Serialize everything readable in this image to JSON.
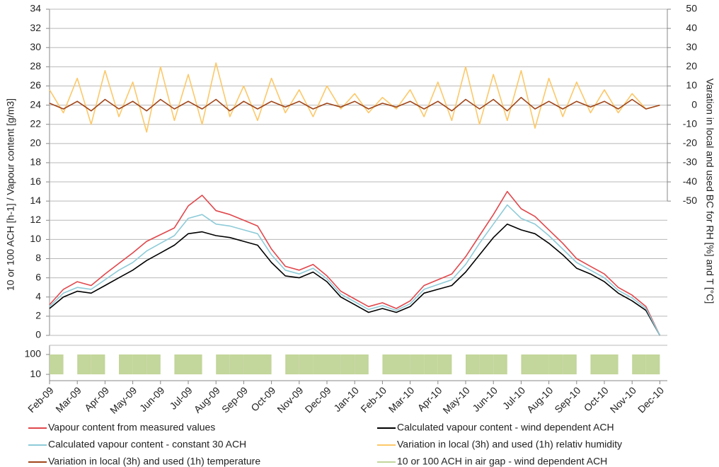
{
  "chart_data": [
    {
      "type": "line",
      "y_label": "10 or 100 ACH [h-1] / Vapour content [g/m3]",
      "y2_label": "Varation in local and used BC for RH [%] and T [°C]",
      "x": [
        0,
        0.5,
        1,
        1.5,
        2,
        2.5,
        3,
        3.5,
        4,
        4.5,
        5,
        5.5,
        6,
        6.5,
        7,
        7.5,
        8,
        8.5,
        9,
        9.5,
        10,
        10.5,
        11,
        11.5,
        12,
        12.5,
        13,
        13.5,
        14,
        14.5,
        15,
        15.5,
        16,
        16.5,
        17,
        17.5,
        18,
        18.5,
        19,
        19.5,
        20,
        20.5,
        21,
        21.5,
        22
      ],
      "xlim": [
        0,
        22.27
      ],
      "ylim": [
        0,
        34
      ],
      "yticks": [
        0,
        2,
        4,
        6,
        8,
        10,
        12,
        14,
        16,
        18,
        20,
        22,
        24,
        26,
        28,
        30,
        32,
        34
      ],
      "y2lim": [
        -120,
        50
      ],
      "y2ticks": [
        50,
        40,
        30,
        20,
        10,
        0,
        -10,
        -20,
        -30,
        -40,
        -50
      ],
      "grid": true,
      "series": [
        {
          "name": "Vapour content from measured values",
          "color": "#e0474c",
          "values": [
            3.2,
            4.8,
            5.6,
            5.2,
            6.4,
            7.5,
            8.6,
            9.8,
            10.5,
            11.2,
            13.5,
            14.6,
            13.0,
            12.6,
            12.0,
            11.4,
            9.0,
            7.2,
            6.8,
            7.4,
            6.2,
            4.6,
            3.8,
            3.0,
            3.4,
            2.8,
            3.6,
            5.2,
            5.8,
            6.4,
            8.2,
            10.4,
            12.6,
            15.0,
            13.2,
            12.4,
            11.0,
            9.6,
            8.0,
            7.2,
            6.4,
            5.0,
            4.2,
            3.0,
            0
          ]
        },
        {
          "name": "Calculated vapour content - wind dependent ACH",
          "color": "#000000",
          "values": [
            2.8,
            4.0,
            4.6,
            4.4,
            5.2,
            6.0,
            6.8,
            7.8,
            8.6,
            9.4,
            10.6,
            10.8,
            10.4,
            10.2,
            9.8,
            9.4,
            7.6,
            6.2,
            6.0,
            6.6,
            5.6,
            4.0,
            3.2,
            2.4,
            2.8,
            2.4,
            3.0,
            4.4,
            4.8,
            5.2,
            6.6,
            8.4,
            10.2,
            11.6,
            11.0,
            10.6,
            9.6,
            8.4,
            7.0,
            6.4,
            5.6,
            4.4,
            3.6,
            2.6,
            0
          ]
        },
        {
          "name": "Calculated vapour content - constant 30 ACH",
          "color": "#8ecbd8",
          "values": [
            3.0,
            4.4,
            5.0,
            4.8,
            5.8,
            6.8,
            7.6,
            8.8,
            9.6,
            10.4,
            12.2,
            12.6,
            11.6,
            11.4,
            11.0,
            10.6,
            8.4,
            6.8,
            6.4,
            7.0,
            5.9,
            4.3,
            3.5,
            2.7,
            3.1,
            2.6,
            3.3,
            4.8,
            5.3,
            5.8,
            7.4,
            9.6,
            11.6,
            13.6,
            12.2,
            11.6,
            10.4,
            9.0,
            7.6,
            6.8,
            6.0,
            4.7,
            3.9,
            2.8,
            0
          ]
        },
        {
          "name": "Variation in local (3h) and used (1h) relativ humidity",
          "color": "#fcc868",
          "axis": "y2",
          "values": [
            8,
            -4,
            14,
            -10,
            18,
            -6,
            12,
            -14,
            20,
            -8,
            16,
            -10,
            22,
            -6,
            10,
            -8,
            14,
            -4,
            8,
            -6,
            10,
            -2,
            6,
            -4,
            4,
            -2,
            8,
            -6,
            12,
            -8,
            20,
            -10,
            16,
            -8,
            18,
            -12,
            14,
            -6,
            12,
            -4,
            8,
            -4,
            6,
            -2,
            0
          ]
        },
        {
          "name": "Variation in local (3h) and used (1h) temperature",
          "color": "#a0461a",
          "axis": "y2",
          "values": [
            1,
            -2,
            2,
            -3,
            3,
            -2,
            2,
            -3,
            3,
            -2,
            2,
            -2,
            3,
            -3,
            2,
            -2,
            2,
            -1,
            2,
            -2,
            1,
            -1,
            2,
            -2,
            1,
            -1,
            2,
            -2,
            2,
            -3,
            3,
            -2,
            3,
            -3,
            4,
            -2,
            2,
            -2,
            2,
            -1,
            2,
            -2,
            3,
            -2,
            0
          ]
        }
      ]
    },
    {
      "type": "bar",
      "x": [
        0,
        0.5,
        1,
        1.5,
        2,
        2.5,
        3,
        3.5,
        4,
        4.5,
        5,
        5.5,
        6,
        6.5,
        7,
        7.5,
        8,
        8.5,
        9,
        9.5,
        10,
        10.5,
        11,
        11.5,
        12,
        12.5,
        13,
        13.5,
        14,
        14.5,
        15,
        15.5,
        16,
        16.5,
        17,
        17.5,
        18,
        18.5,
        19,
        19.5,
        20,
        20.5,
        21,
        21.5,
        22
      ],
      "xlim": [
        0,
        22.27
      ],
      "xticks": [
        {
          "value": 0,
          "label": "Feb-09"
        },
        {
          "value": 1,
          "label": "Mar-09"
        },
        {
          "value": 2,
          "label": "Apr-09"
        },
        {
          "value": 3,
          "label": "May-09"
        },
        {
          "value": 4,
          "label": "Jun-09"
        },
        {
          "value": 5,
          "label": "Jul-09"
        },
        {
          "value": 6,
          "label": "Aug-09"
        },
        {
          "value": 7,
          "label": "Sep-09"
        },
        {
          "value": 8,
          "label": "Oct-09"
        },
        {
          "value": 9,
          "label": "Nov-09"
        },
        {
          "value": 10,
          "label": "Dec-09"
        },
        {
          "value": 11,
          "label": "Jan-10"
        },
        {
          "value": 12,
          "label": "Feb-10"
        },
        {
          "value": 13,
          "label": "Mar-10"
        },
        {
          "value": 14,
          "label": "Apr-10"
        },
        {
          "value": 15,
          "label": "May-10"
        },
        {
          "value": 16,
          "label": "Jun-10"
        },
        {
          "value": 17,
          "label": "Jul-10"
        },
        {
          "value": 18,
          "label": "Aug-10"
        },
        {
          "value": 19,
          "label": "Sep-10"
        },
        {
          "value": 20,
          "label": "Oct-10"
        },
        {
          "value": 21,
          "label": "Nov-10"
        },
        {
          "value": 22,
          "label": "Dec-10"
        }
      ],
      "ylim": [
        4.8,
        290
      ],
      "yticks": [
        100,
        10
      ],
      "log_scale": true,
      "series": [
        {
          "name": "10 or 100 ACH in air gap - wind dependent ACH",
          "color": "#c3d69b",
          "values": [
            100,
            10,
            100,
            100,
            10,
            100,
            100,
            100,
            10,
            100,
            100,
            10,
            100,
            100,
            100,
            100,
            10,
            100,
            100,
            100,
            100,
            100,
            100,
            10,
            100,
            100,
            100,
            100,
            100,
            10,
            100,
            100,
            100,
            10,
            100,
            100,
            100,
            100,
            10,
            100,
            100,
            10,
            100,
            100,
            10
          ]
        }
      ]
    }
  ]
}
